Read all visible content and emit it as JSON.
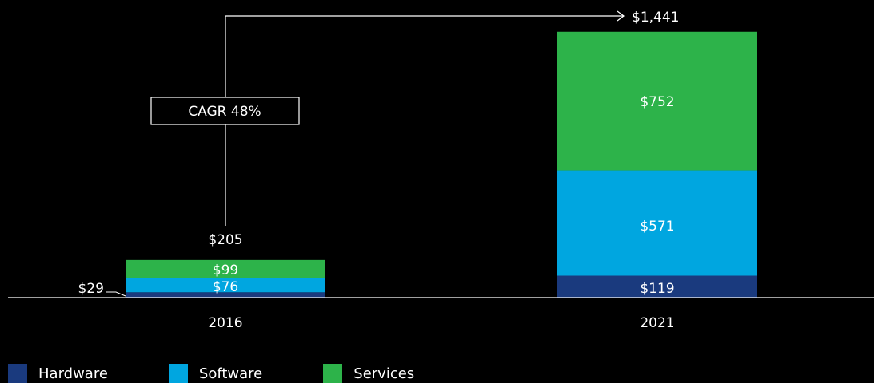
{
  "chart_data": {
    "type": "bar",
    "stacked": true,
    "categories": [
      "2016",
      "2021"
    ],
    "series": [
      {
        "name": "Hardware",
        "values": [
          29,
          119
        ],
        "value_labels": [
          "$29",
          "$119"
        ],
        "color": "#1a3a7e"
      },
      {
        "name": "Software",
        "values": [
          76,
          571
        ],
        "value_labels": [
          "$76",
          "$571"
        ],
        "color": "#00a6e0"
      },
      {
        "name": "Services",
        "values": [
          99,
          752
        ],
        "value_labels": [
          "$99",
          "$752"
        ],
        "color": "#2db34a"
      }
    ],
    "totals": [
      205,
      1441
    ],
    "total_labels": [
      "$205",
      "$1,441"
    ],
    "annotation": "CAGR 48%",
    "ylim": [
      0,
      1441
    ],
    "grid": false,
    "legend_position": "bottom-left",
    "text_color": "#ffffff",
    "background": "#000000"
  }
}
